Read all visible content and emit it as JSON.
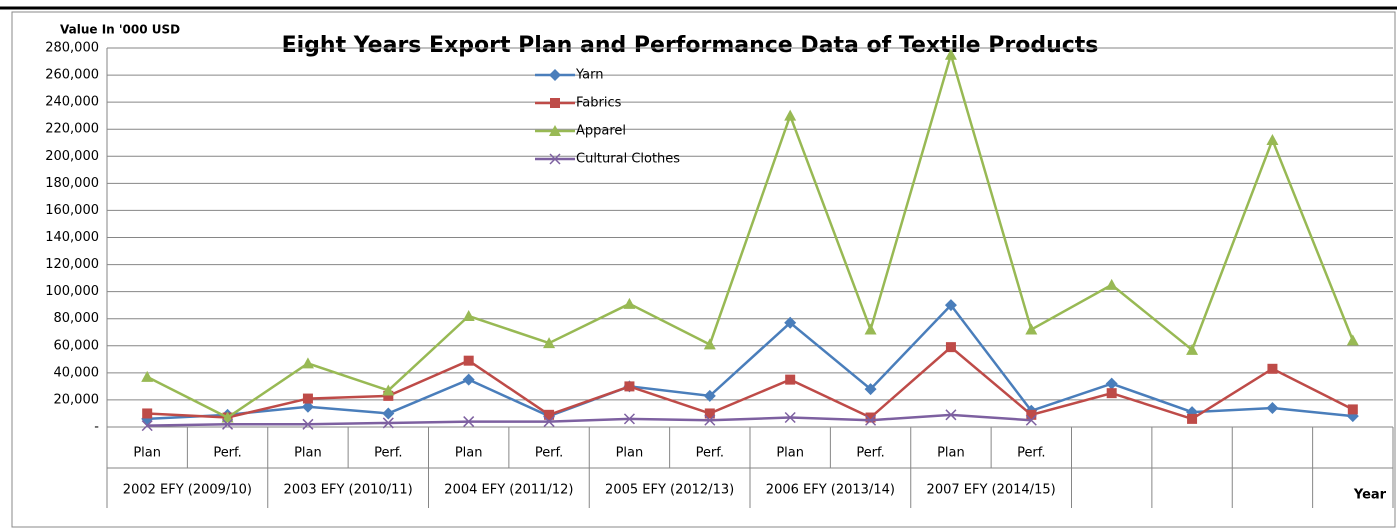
{
  "chart_data": {
    "type": "line",
    "title": "Eight Years Export Plan and Performance Data of Textile Products",
    "y_axis_label": "Value In '000 USD",
    "x_axis_label": "Year",
    "categories": [
      "Plan",
      "Perf.",
      "Plan",
      "Perf.",
      "Plan",
      "Perf.",
      "Plan",
      "Perf.",
      "Plan",
      "Perf.",
      "Plan",
      "Perf.",
      null,
      null,
      null,
      null
    ],
    "groups": [
      "2002 EFY (2009/10)",
      "2003 EFY (2010/11)",
      "2004 EFY (2011/12)",
      "2005 EFY (2012/13)",
      "2006 EFY (2013/14)",
      "2007 EFY (2014/15)"
    ],
    "series": [
      {
        "name": "Yarn",
        "color": "#4a7ebb",
        "marker": "diamond",
        "values": [
          6000,
          9000,
          15000,
          10000,
          35000,
          8000,
          30000,
          23000,
          77000,
          28000,
          90000,
          12000,
          32000,
          11000,
          14000,
          8000
        ]
      },
      {
        "name": "Fabrics",
        "color": "#be4b48",
        "marker": "square",
        "values": [
          10000,
          7000,
          21000,
          23000,
          49000,
          9000,
          30000,
          10000,
          35000,
          7000,
          59000,
          9000,
          25000,
          6000,
          43000,
          13000
        ]
      },
      {
        "name": "Apparel",
        "color": "#98b954",
        "marker": "triangle",
        "values": [
          37000,
          7000,
          47000,
          27000,
          82000,
          62000,
          91000,
          61000,
          230000,
          72000,
          275000,
          72000,
          105000,
          57000,
          212000,
          64000
        ]
      },
      {
        "name": "Cultural Clothes",
        "color": "#7d60a0",
        "marker": "x",
        "values": [
          1000,
          2000,
          2000,
          3000,
          4000,
          4000,
          6000,
          5000,
          7000,
          5000,
          9000,
          5000,
          null,
          null,
          null,
          null
        ]
      }
    ],
    "ylim": [
      0,
      280000
    ],
    "yticks": [
      {
        "value": 0,
        "label": "-"
      },
      {
        "value": 20000,
        "label": "20,000"
      },
      {
        "value": 40000,
        "label": "40,000"
      },
      {
        "value": 60000,
        "label": "60,000"
      },
      {
        "value": 80000,
        "label": "80,000"
      },
      {
        "value": 100000,
        "label": "100,000"
      },
      {
        "value": 120000,
        "label": "120,000"
      },
      {
        "value": 140000,
        "label": "140,000"
      },
      {
        "value": 160000,
        "label": "160,000"
      },
      {
        "value": 180000,
        "label": "180,000"
      },
      {
        "value": 200000,
        "label": "200,000"
      },
      {
        "value": 220000,
        "label": "220,000"
      },
      {
        "value": 240000,
        "label": "240,000"
      },
      {
        "value": 260000,
        "label": "260,000"
      },
      {
        "value": 280000,
        "label": "280,000"
      }
    ],
    "grid": true
  }
}
